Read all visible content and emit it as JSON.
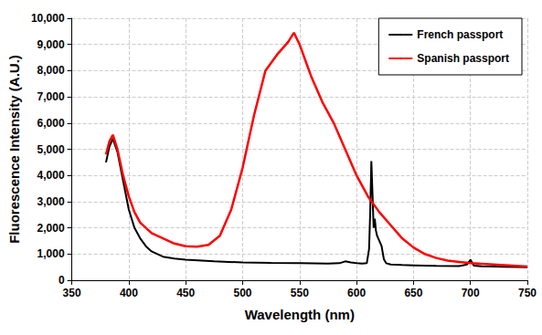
{
  "chart_data": {
    "type": "line",
    "x_label": "Wavelength (nm)",
    "y_label": "Fluorescence Intensity (A.U.)",
    "xlim": [
      350,
      750
    ],
    "xticks": [
      350,
      400,
      450,
      500,
      550,
      600,
      650,
      700,
      750
    ],
    "ylim": [
      0,
      10000
    ],
    "yticks": [
      0,
      1000,
      2000,
      3000,
      4000,
      5000,
      6000,
      7000,
      8000,
      9000,
      10000
    ],
    "grid": true,
    "legend": "upper right",
    "series": [
      {
        "name": "French passport",
        "color": "#000000",
        "x": [
          380,
          383,
          386,
          390,
          395,
          400,
          405,
          410,
          415,
          420,
          430,
          440,
          450,
          475,
          500,
          525,
          550,
          575,
          585,
          590,
          595,
          600,
          605,
          609,
          611,
          612,
          613,
          614,
          615,
          616,
          617,
          618,
          620,
          622,
          624,
          626,
          630,
          640,
          650,
          670,
          690,
          697,
          700,
          703,
          710,
          730,
          750
        ],
        "values": [
          4500,
          5100,
          5400,
          4900,
          3800,
          2700,
          2000,
          1600,
          1300,
          1100,
          900,
          830,
          780,
          720,
          680,
          660,
          650,
          640,
          650,
          720,
          680,
          650,
          640,
          650,
          1200,
          2600,
          4550,
          3300,
          2000,
          2350,
          1900,
          1700,
          1500,
          1300,
          800,
          650,
          600,
          580,
          570,
          550,
          540,
          600,
          780,
          560,
          530,
          510,
          500
        ]
      },
      {
        "name": "Spanish passport",
        "color": "#ff0000",
        "x": [
          380,
          383,
          386,
          390,
          395,
          400,
          405,
          410,
          420,
          430,
          440,
          450,
          460,
          470,
          480,
          490,
          500,
          510,
          520,
          530,
          540,
          545,
          550,
          560,
          570,
          580,
          590,
          600,
          610,
          620,
          630,
          640,
          650,
          660,
          670,
          680,
          690,
          700,
          720,
          750
        ],
        "values": [
          4800,
          5300,
          5550,
          5000,
          4000,
          3200,
          2600,
          2200,
          1800,
          1600,
          1400,
          1300,
          1280,
          1350,
          1700,
          2700,
          4300,
          6300,
          8000,
          8600,
          9100,
          9450,
          9000,
          7800,
          6800,
          6000,
          5000,
          4000,
          3200,
          2600,
          2100,
          1600,
          1250,
          1000,
          850,
          750,
          700,
          650,
          600,
          520
        ]
      }
    ]
  }
}
